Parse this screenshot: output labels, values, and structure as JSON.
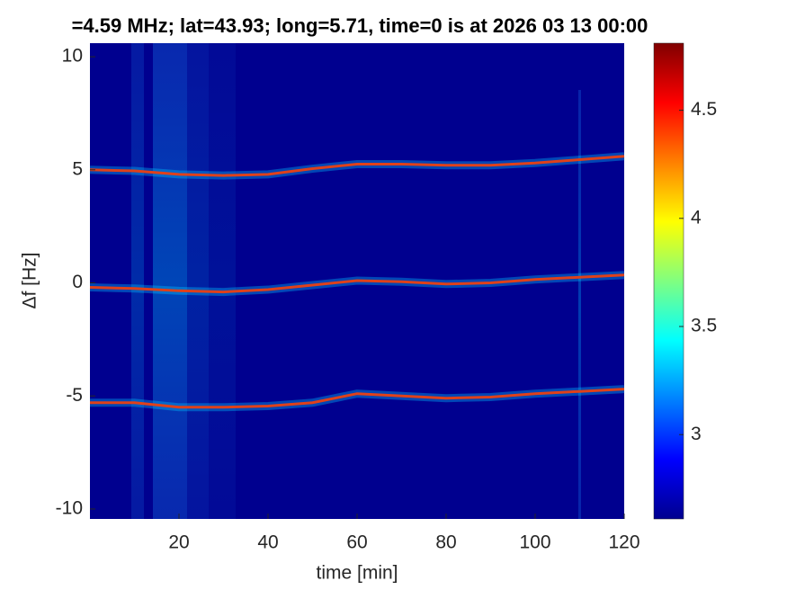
{
  "chart_data": {
    "type": "spectrogram",
    "title": "=4.59 MHz;  lat=43.93; long=5.71, time=0 is at 2026 03 13 00:00",
    "xlabel": "time [min]",
    "ylabel": "Δf [Hz]",
    "xlim": [
      0,
      120
    ],
    "xticks": [
      20,
      40,
      60,
      80,
      100,
      120
    ],
    "ylim": [
      -10.44,
      10.6
    ],
    "yticks": [
      -10,
      -5,
      0,
      5,
      10
    ],
    "background": "#00008f",
    "x": [
      0,
      10,
      20,
      30,
      40,
      50,
      60,
      70,
      80,
      90,
      100,
      110,
      120
    ],
    "series": [
      {
        "color": "#e0401a",
        "values": [
          5.0,
          4.95,
          4.8,
          4.75,
          4.8,
          5.05,
          5.25,
          5.25,
          5.2,
          5.2,
          5.3,
          5.45,
          5.6
        ]
      },
      {
        "color": "#e0401a",
        "values": [
          -0.2,
          -0.25,
          -0.35,
          -0.4,
          -0.3,
          -0.1,
          0.1,
          0.05,
          -0.05,
          0.0,
          0.15,
          0.25,
          0.35
        ]
      },
      {
        "color": "#e0401a",
        "values": [
          -5.3,
          -5.3,
          -5.5,
          -5.5,
          -5.45,
          -5.3,
          -4.9,
          -5.0,
          -5.1,
          -5.05,
          -4.9,
          -4.8,
          -4.7
        ]
      }
    ],
    "colorbar": {
      "lim": [
        2.61,
        4.81
      ],
      "ticks": [
        3,
        3.5,
        4,
        4.5
      ],
      "colormap": [
        "#00008f",
        "#0000ff",
        "#0080ff",
        "#00ffff",
        "#80ff80",
        "#ffff00",
        "#ff8000",
        "#ff0000",
        "#800000"
      ]
    }
  }
}
